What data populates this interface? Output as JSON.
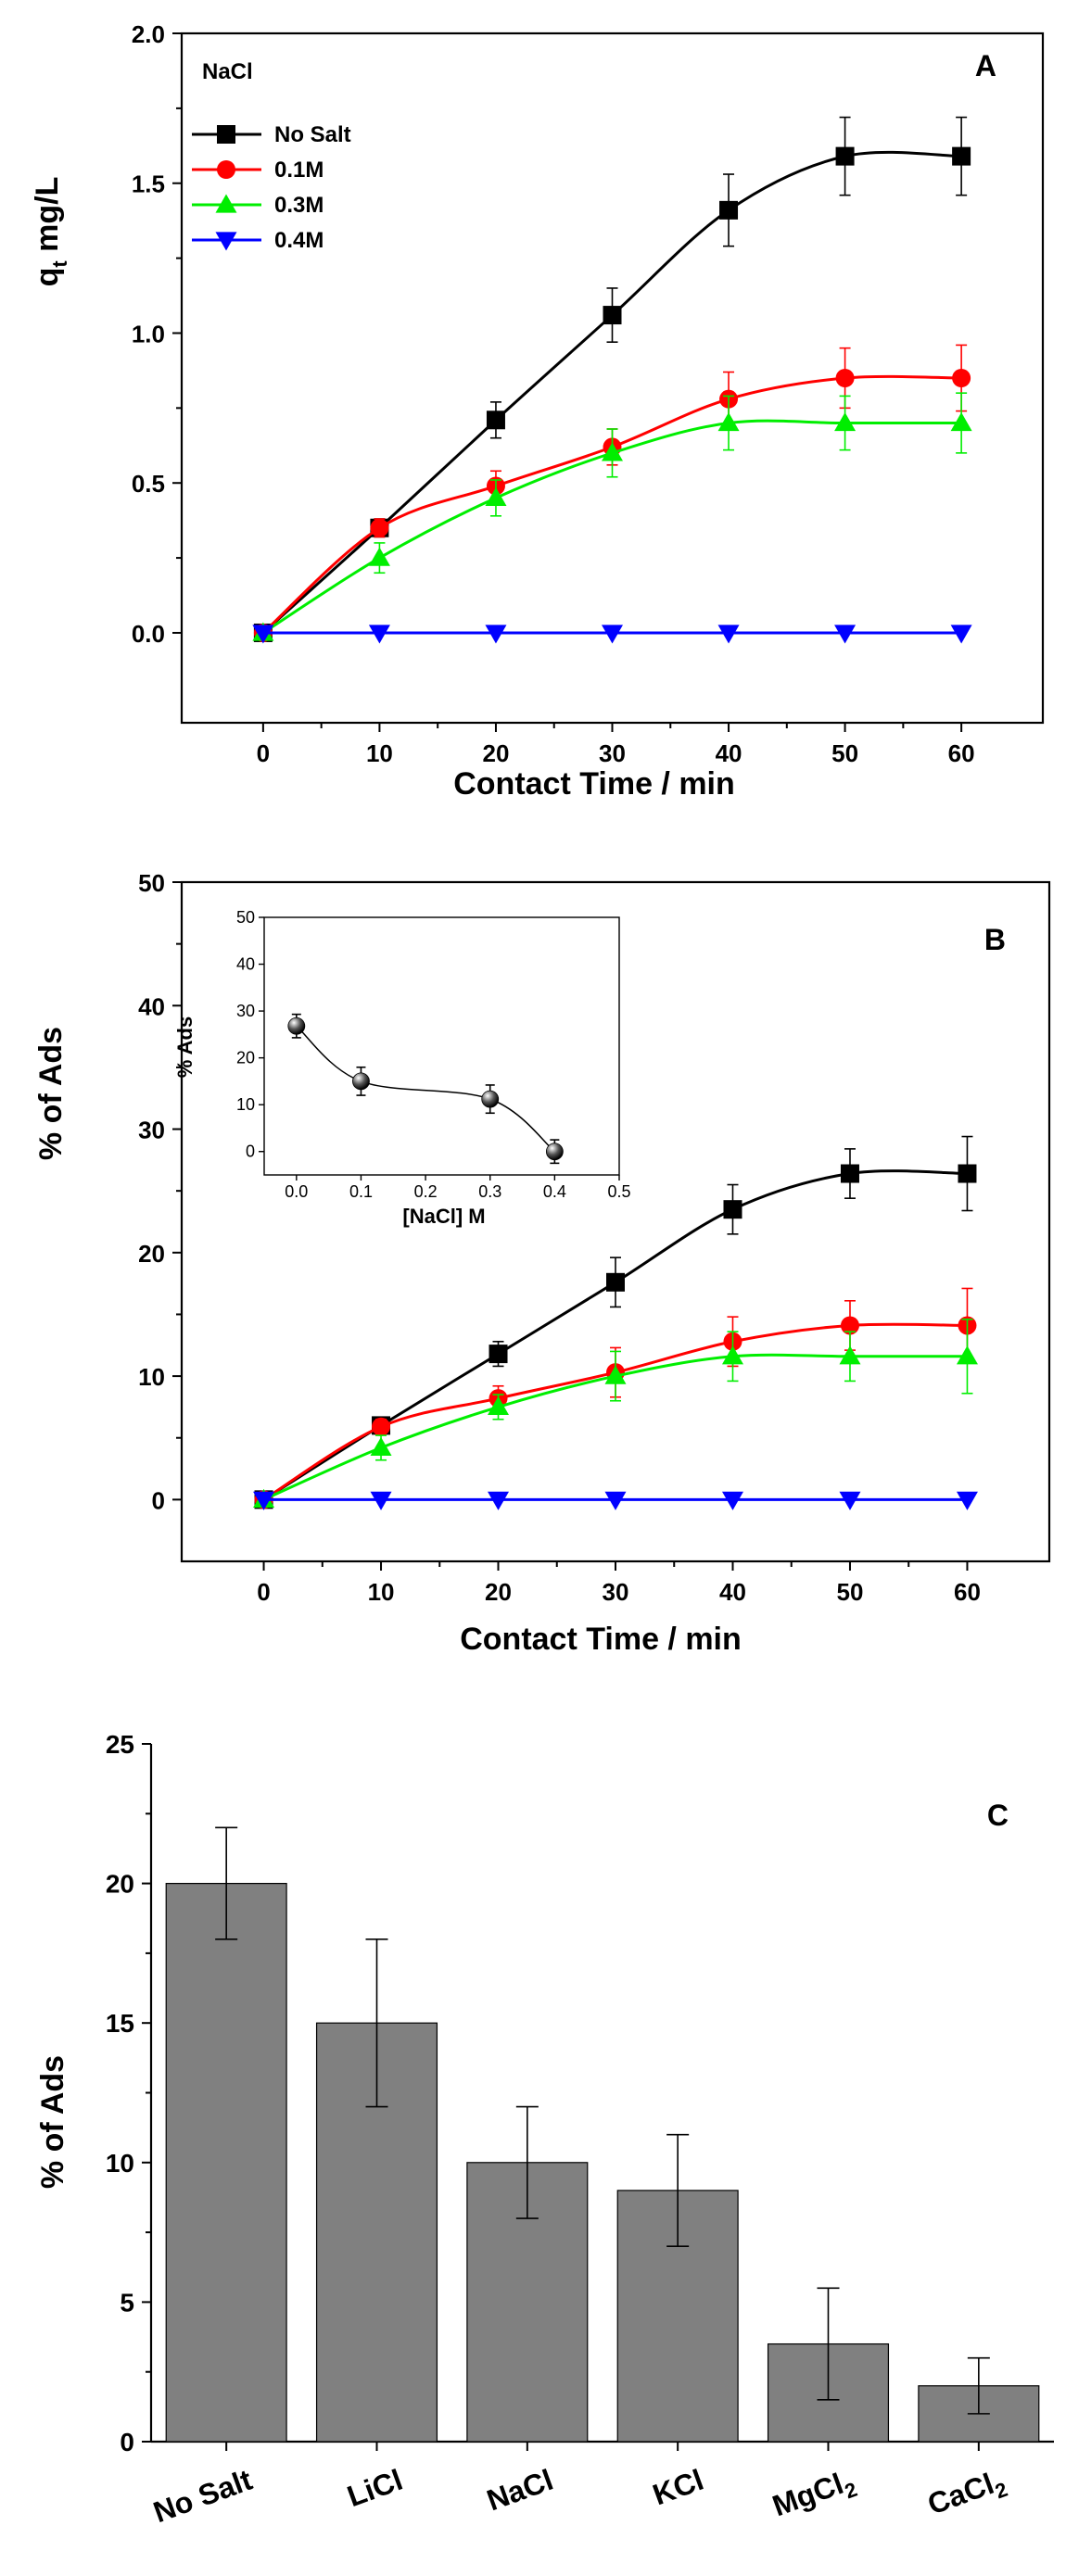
{
  "chart_data": [
    {
      "panel": "A",
      "type": "line",
      "xlabel": "Contact Time / min",
      "ylabel_main": "q",
      "ylabel_sub": "t",
      "ylabel_rest": " mg/L",
      "xlim": [
        -7,
        67
      ],
      "ylim": [
        -0.3,
        2.0
      ],
      "xticks": [
        0,
        10,
        20,
        30,
        40,
        50,
        60
      ],
      "yticks": [
        0.0,
        0.5,
        1.0,
        1.5,
        2.0
      ],
      "ytick_labels": [
        "0.0",
        "0.5",
        "1.0",
        "1.5",
        "2.0"
      ],
      "legend_title": "NaCl",
      "x": [
        0,
        10,
        20,
        30,
        40,
        50,
        60
      ],
      "series": [
        {
          "name": "No Salt",
          "color": "#000000",
          "marker": "square",
          "values": [
            0.0,
            0.35,
            0.71,
            1.06,
            1.41,
            1.59,
            1.59
          ],
          "errors": [
            0.02,
            0.03,
            0.06,
            0.09,
            0.12,
            0.13,
            0.13
          ]
        },
        {
          "name": "0.1M",
          "color": "#ff0000",
          "marker": "circle",
          "values": [
            0.0,
            0.35,
            0.49,
            0.62,
            0.78,
            0.85,
            0.85
          ],
          "errors": [
            0.02,
            0.03,
            0.05,
            0.06,
            0.09,
            0.1,
            0.11
          ]
        },
        {
          "name": "0.3M",
          "color": "#00ee00",
          "marker": "triangle-up",
          "values": [
            0.0,
            0.25,
            0.45,
            0.6,
            0.7,
            0.7,
            0.7
          ],
          "errors": [
            0.02,
            0.05,
            0.06,
            0.08,
            0.09,
            0.09,
            0.1
          ]
        },
        {
          "name": "0.4M",
          "color": "#0000ff",
          "marker": "triangle-down",
          "values": [
            0.0,
            0.0,
            0.0,
            0.0,
            0.0,
            0.0,
            0.0
          ],
          "errors": [
            0,
            0,
            0,
            0,
            0,
            0,
            0
          ]
        }
      ]
    },
    {
      "panel": "B",
      "type": "line",
      "xlabel": "Contact Time / min",
      "ylabel": "% of Ads",
      "xlim": [
        -7,
        67
      ],
      "ylim": [
        -5,
        50
      ],
      "xticks": [
        0,
        10,
        20,
        30,
        40,
        50,
        60
      ],
      "yticks": [
        0,
        10,
        20,
        30,
        40,
        50
      ],
      "x": [
        0,
        10,
        20,
        30,
        40,
        50,
        60
      ],
      "series": [
        {
          "name": "No Salt",
          "color": "#000000",
          "marker": "square",
          "values": [
            0,
            6,
            11.8,
            17.6,
            23.5,
            26.4,
            26.4
          ],
          "errors": [
            0.4,
            0.6,
            1.0,
            2.0,
            2.0,
            2.0,
            3.0
          ]
        },
        {
          "name": "0.1M",
          "color": "#ff0000",
          "marker": "circle",
          "values": [
            0,
            5.9,
            8.2,
            10.3,
            12.8,
            14.1,
            14.1
          ],
          "errors": [
            0.4,
            0.6,
            1.0,
            2.0,
            2.0,
            2.0,
            3.0
          ]
        },
        {
          "name": "0.3M",
          "color": "#00ee00",
          "marker": "triangle-up",
          "values": [
            0,
            4.2,
            7.5,
            10,
            11.6,
            11.6,
            11.6
          ],
          "errors": [
            0.4,
            1.0,
            1.0,
            2.0,
            2.0,
            2.0,
            3.0
          ]
        },
        {
          "name": "0.4M",
          "color": "#0000ff",
          "marker": "triangle-down",
          "values": [
            0,
            0,
            0,
            0,
            0,
            0,
            0
          ],
          "errors": [
            0,
            0,
            0,
            0,
            0,
            0,
            0
          ]
        }
      ],
      "inset": {
        "type": "scatter",
        "xlabel": "[NaCl] M",
        "ylabel": "% Ads",
        "xlim": [
          -0.05,
          0.5
        ],
        "ylim": [
          -5,
          50
        ],
        "xticks": [
          0.0,
          0.1,
          0.2,
          0.3,
          0.4,
          0.5
        ],
        "xtick_labels": [
          "0.0",
          "0.1",
          "0.2",
          "0.3",
          "0.4",
          "0.5"
        ],
        "yticks": [
          0,
          10,
          20,
          30,
          40,
          50
        ],
        "x": [
          0.0,
          0.1,
          0.3,
          0.4
        ],
        "values": [
          26.8,
          15.0,
          11.2,
          0.0
        ],
        "errors": [
          2.5,
          3.0,
          3.0,
          2.5
        ]
      }
    },
    {
      "panel": "C",
      "type": "bar",
      "ylabel": "% of Ads",
      "ylim": [
        0,
        25
      ],
      "yticks": [
        0,
        5,
        10,
        15,
        20,
        25
      ],
      "categories": [
        {
          "main": "No Salt",
          "sub": ""
        },
        {
          "main": "LiCl",
          "sub": ""
        },
        {
          "main": "NaCl",
          "sub": ""
        },
        {
          "main": "KCl",
          "sub": ""
        },
        {
          "main": "MgCl",
          "sub": "2"
        },
        {
          "main": "CaCl",
          "sub": "2"
        }
      ],
      "values": [
        20,
        15,
        10,
        9,
        3.5,
        2
      ],
      "errors": [
        2,
        3,
        2,
        2,
        2,
        1
      ],
      "bar_color": "#808080"
    }
  ]
}
